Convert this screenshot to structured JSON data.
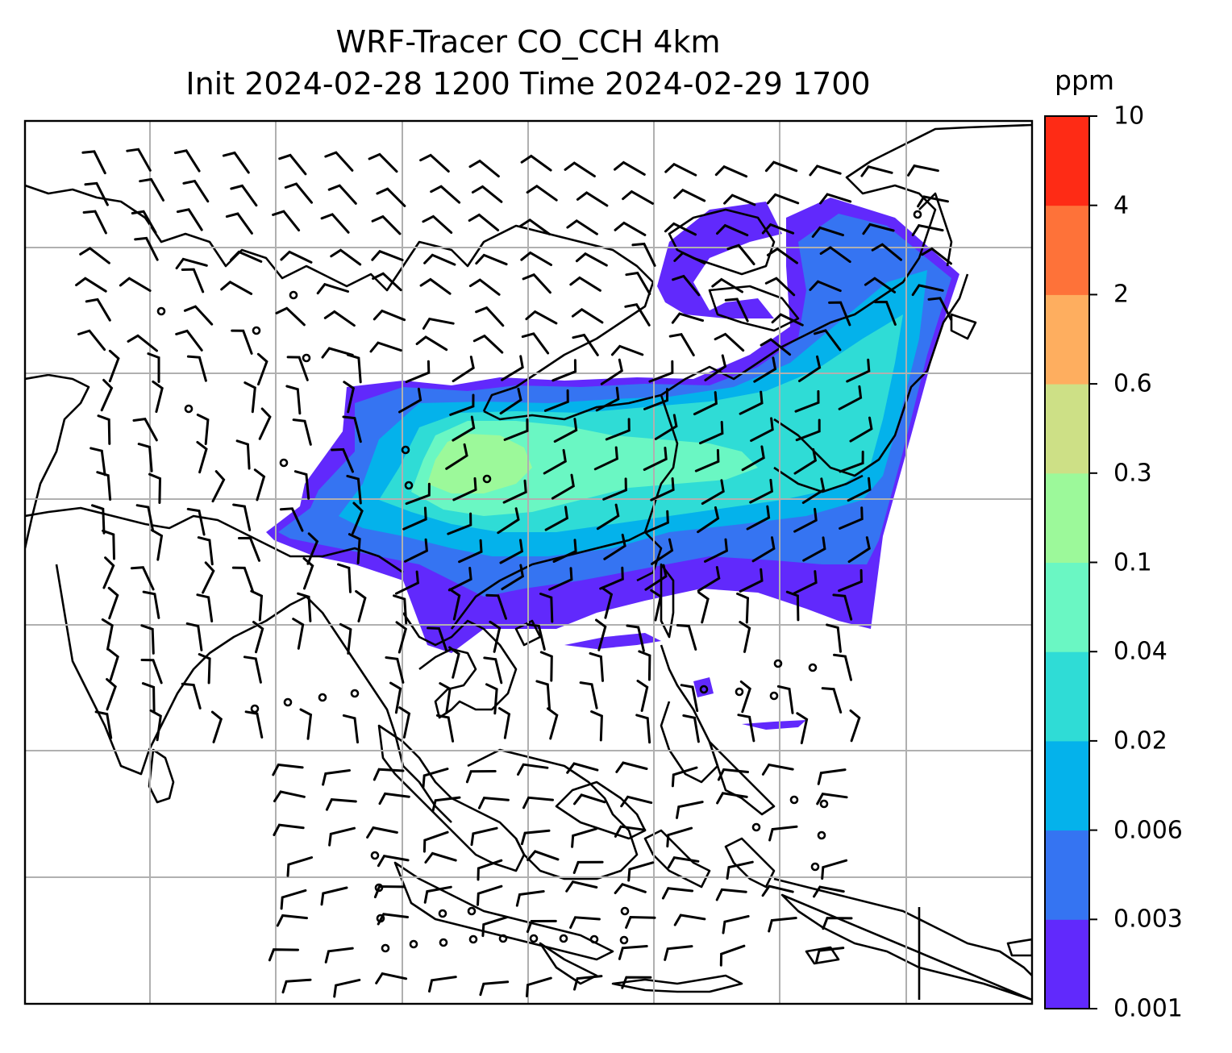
{
  "title": {
    "line1": "WRF-Tracer CO_CCH 4km",
    "line2": "Init 2024-02-28 1200 Time 2024-02-29 1700"
  },
  "colorbar": {
    "unit": "ppm",
    "levels": [
      "0.001",
      "0.003",
      "0.006",
      "0.02",
      "0.04",
      "0.1",
      "0.3",
      "0.6",
      "2",
      "4",
      "10"
    ],
    "colors": [
      "#6129fc",
      "#3574f2",
      "#04b2eb",
      "#2fdcd6",
      "#6af7c3",
      "#9cf99a",
      "#cde086",
      "#feae5f",
      "#fe7239",
      "#fe2b15"
    ]
  },
  "map": {
    "gridline_color": "#b0b0b0",
    "coastline_color": "#000000",
    "wind_barb_color": "#000000",
    "field": "CO_CCH tracer concentration with wind barbs"
  }
}
